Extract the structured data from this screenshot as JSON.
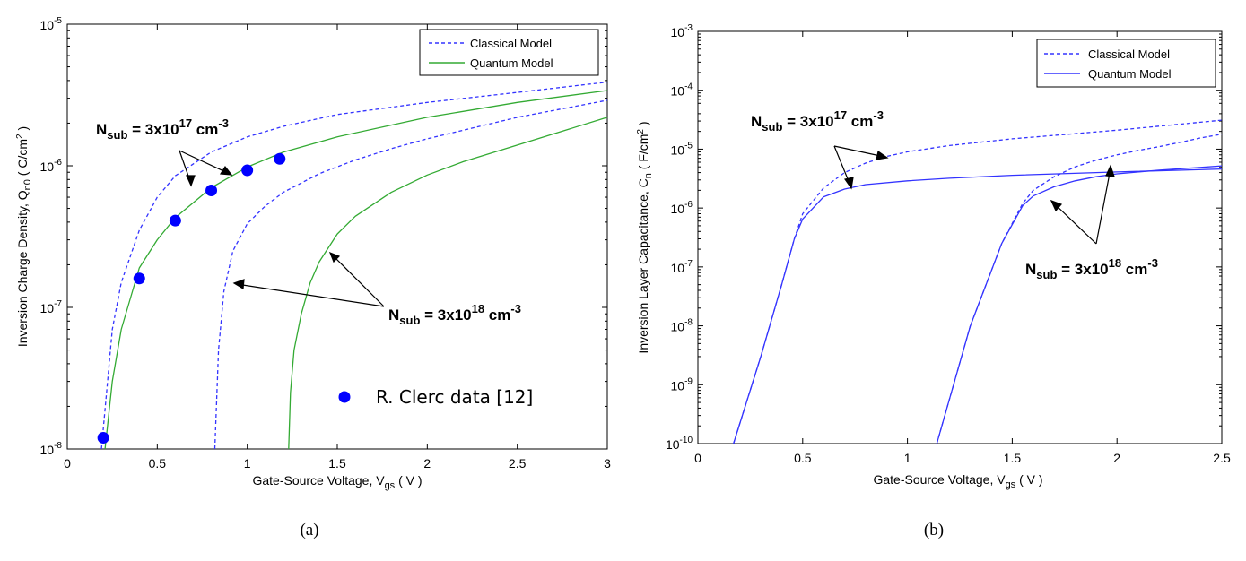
{
  "chart_data": [
    {
      "id": "a",
      "type": "line",
      "caption": "(a)",
      "xlabel": "Gate-Source Voltage, V",
      "xlabel_sub": "gs",
      "xlabel_tail": " ( V )",
      "ylabel": "Inversion Charge Density, Q",
      "ylabel_sub": "n0",
      "ylabel_tail": " ( C/cm",
      "ylabel_sup": "2",
      "ylabel_end": " )",
      "xlim": [
        0,
        3
      ],
      "ylim": [
        1e-08,
        1e-05
      ],
      "yscale": "log",
      "xticks": [
        "0",
        "0.5",
        "1",
        "1.5",
        "2",
        "2.5",
        "3"
      ],
      "yticks": [
        "10-8",
        "10-7",
        "10-6",
        "10-5"
      ],
      "legend_position": "top-right",
      "legend": [
        "Classical Model",
        "Quantum Model"
      ],
      "colors": {
        "classical": "#3333ff",
        "quantum": "#33aa33",
        "data": "#0000ff"
      },
      "series": [
        {
          "name": "Classical Model",
          "group": "3x10^17",
          "style": "dashed",
          "x": [
            0.19,
            0.25,
            0.3,
            0.4,
            0.5,
            0.6,
            0.8,
            1.0,
            1.2,
            1.5,
            2.0,
            2.5,
            3.0
          ],
          "y": [
            1e-08,
            7e-08,
            1.5e-07,
            3.5e-07,
            6e-07,
            8.5e-07,
            1.25e-06,
            1.6e-06,
            1.9e-06,
            2.3e-06,
            2.8e-06,
            3.3e-06,
            3.9e-06
          ]
        },
        {
          "name": "Quantum Model",
          "group": "3x10^17",
          "style": "solid",
          "x": [
            0.21,
            0.25,
            0.3,
            0.4,
            0.5,
            0.6,
            0.8,
            1.0,
            1.2,
            1.5,
            2.0,
            2.5,
            3.0
          ],
          "y": [
            1e-08,
            3e-08,
            7e-08,
            1.9e-07,
            3e-07,
            4.3e-07,
            7e-07,
            9.8e-07,
            1.25e-06,
            1.6e-06,
            2.2e-06,
            2.8e-06,
            3.4e-06
          ]
        },
        {
          "name": "Classical Model",
          "group": "3x10^18",
          "style": "dashed",
          "x": [
            0.82,
            0.84,
            0.87,
            0.92,
            1.0,
            1.1,
            1.2,
            1.4,
            1.6,
            1.8,
            2.0,
            2.5,
            3.0
          ],
          "y": [
            1e-08,
            5e-08,
            1.3e-07,
            2.5e-07,
            3.9e-07,
            5.2e-07,
            6.5e-07,
            8.8e-07,
            1.1e-06,
            1.32e-06,
            1.55e-06,
            2.2e-06,
            2.9e-06
          ]
        },
        {
          "name": "Quantum Model",
          "group": "3x10^18",
          "style": "solid",
          "x": [
            1.23,
            1.24,
            1.26,
            1.3,
            1.35,
            1.4,
            1.5,
            1.6,
            1.8,
            2.0,
            2.2,
            2.5,
            3.0
          ],
          "y": [
            1e-08,
            2.5e-08,
            5e-08,
            9e-08,
            1.5e-07,
            2.1e-07,
            3.3e-07,
            4.4e-07,
            6.5e-07,
            8.6e-07,
            1.07e-06,
            1.4e-06,
            2.2e-06
          ]
        }
      ],
      "data_points": {
        "name": "R. Clerc data [12]",
        "x": [
          0.2,
          0.4,
          0.6,
          0.8,
          1.0,
          1.18
        ],
        "y": [
          1.2e-08,
          1.6e-07,
          4.1e-07,
          6.7e-07,
          9.3e-07,
          1.12e-06
        ]
      },
      "annotations": [
        {
          "text": "N",
          "sub": "sub",
          "rest": " = 3x10",
          "sup": "17",
          "tail": " cm",
          "sup2": "-3"
        },
        {
          "text": "N",
          "sub": "sub",
          "rest": " = 3x10",
          "sup": "18",
          "tail": " cm",
          "sup2": "-3"
        }
      ]
    },
    {
      "id": "b",
      "type": "line",
      "caption": "(b)",
      "xlabel": "Gate-Source Voltage, V",
      "xlabel_sub": "gs",
      "xlabel_tail": " ( V )",
      "ylabel": "Inversion Layer Capacitance, C",
      "ylabel_sub": "n",
      "ylabel_tail": " ( F/cm",
      "ylabel_sup": "2",
      "ylabel_end": " )",
      "xlim": [
        0,
        2.5
      ],
      "ylim": [
        1e-10,
        0.001
      ],
      "yscale": "log",
      "xticks": [
        "0",
        "0.5",
        "1",
        "1.5",
        "2",
        "2.5"
      ],
      "yticks": [
        "10-10",
        "10-9",
        "10-8",
        "10-7",
        "10-6",
        "10-5",
        "10-4",
        "10-3"
      ],
      "legend_position": "top-right",
      "legend": [
        "Classical Model",
        "Quantum Model"
      ],
      "colors": {
        "classical": "#3333ff",
        "quantum": "#3333ff"
      },
      "series": [
        {
          "name": "Classical Model",
          "group": "3x10^17",
          "style": "dashed",
          "x": [
            0.17,
            0.3,
            0.4,
            0.46,
            0.5,
            0.6,
            0.7,
            0.8,
            0.9,
            1.0,
            1.2,
            1.5,
            2.0,
            2.5
          ],
          "y": [
            1e-10,
            3e-09,
            5e-08,
            3e-07,
            8e-07,
            2.2e-06,
            4e-06,
            5.8e-06,
            7.5e-06,
            9e-06,
            1.15e-05,
            1.5e-05,
            2.1e-05,
            3.1e-05
          ]
        },
        {
          "name": "Quantum Model",
          "group": "3x10^17",
          "style": "solid",
          "x": [
            0.17,
            0.3,
            0.4,
            0.46,
            0.5,
            0.6,
            0.7,
            0.8,
            1.0,
            1.2,
            1.5,
            2.0,
            2.5
          ],
          "y": [
            1e-10,
            3e-09,
            5e-08,
            3e-07,
            6.5e-07,
            1.55e-06,
            2.1e-06,
            2.5e-06,
            2.9e-06,
            3.2e-06,
            3.6e-06,
            4.1e-06,
            4.6e-06
          ]
        },
        {
          "name": "Classical Model",
          "group": "3x10^18",
          "style": "dashed",
          "x": [
            1.14,
            1.3,
            1.45,
            1.55,
            1.6,
            1.7,
            1.8,
            1.9,
            2.0,
            2.1,
            2.2,
            2.3,
            2.4,
            2.5
          ],
          "y": [
            1e-10,
            1e-08,
            2.5e-07,
            1.2e-06,
            2e-06,
            3.4e-06,
            5e-06,
            6.5e-06,
            8e-06,
            9.5e-06,
            1.1e-05,
            1.3e-05,
            1.55e-05,
            1.8e-05
          ]
        },
        {
          "name": "Quantum Model",
          "group": "3x10^18",
          "style": "solid",
          "x": [
            1.14,
            1.3,
            1.45,
            1.55,
            1.6,
            1.7,
            1.8,
            1.9,
            2.0,
            2.2,
            2.4,
            2.5
          ],
          "y": [
            1e-10,
            1e-08,
            2.5e-07,
            1.1e-06,
            1.6e-06,
            2.3e-06,
            2.9e-06,
            3.4e-06,
            3.8e-06,
            4.4e-06,
            4.9e-06,
            5.2e-06
          ]
        }
      ],
      "annotations": [
        {
          "text": "N",
          "sub": "sub",
          "rest": " = 3x10",
          "sup": "17",
          "tail": " cm",
          "sup2": "-3"
        },
        {
          "text": "N",
          "sub": "sub",
          "rest": " = 3x10",
          "sup": "18",
          "tail": " cm",
          "sup2": "-3"
        }
      ]
    }
  ]
}
